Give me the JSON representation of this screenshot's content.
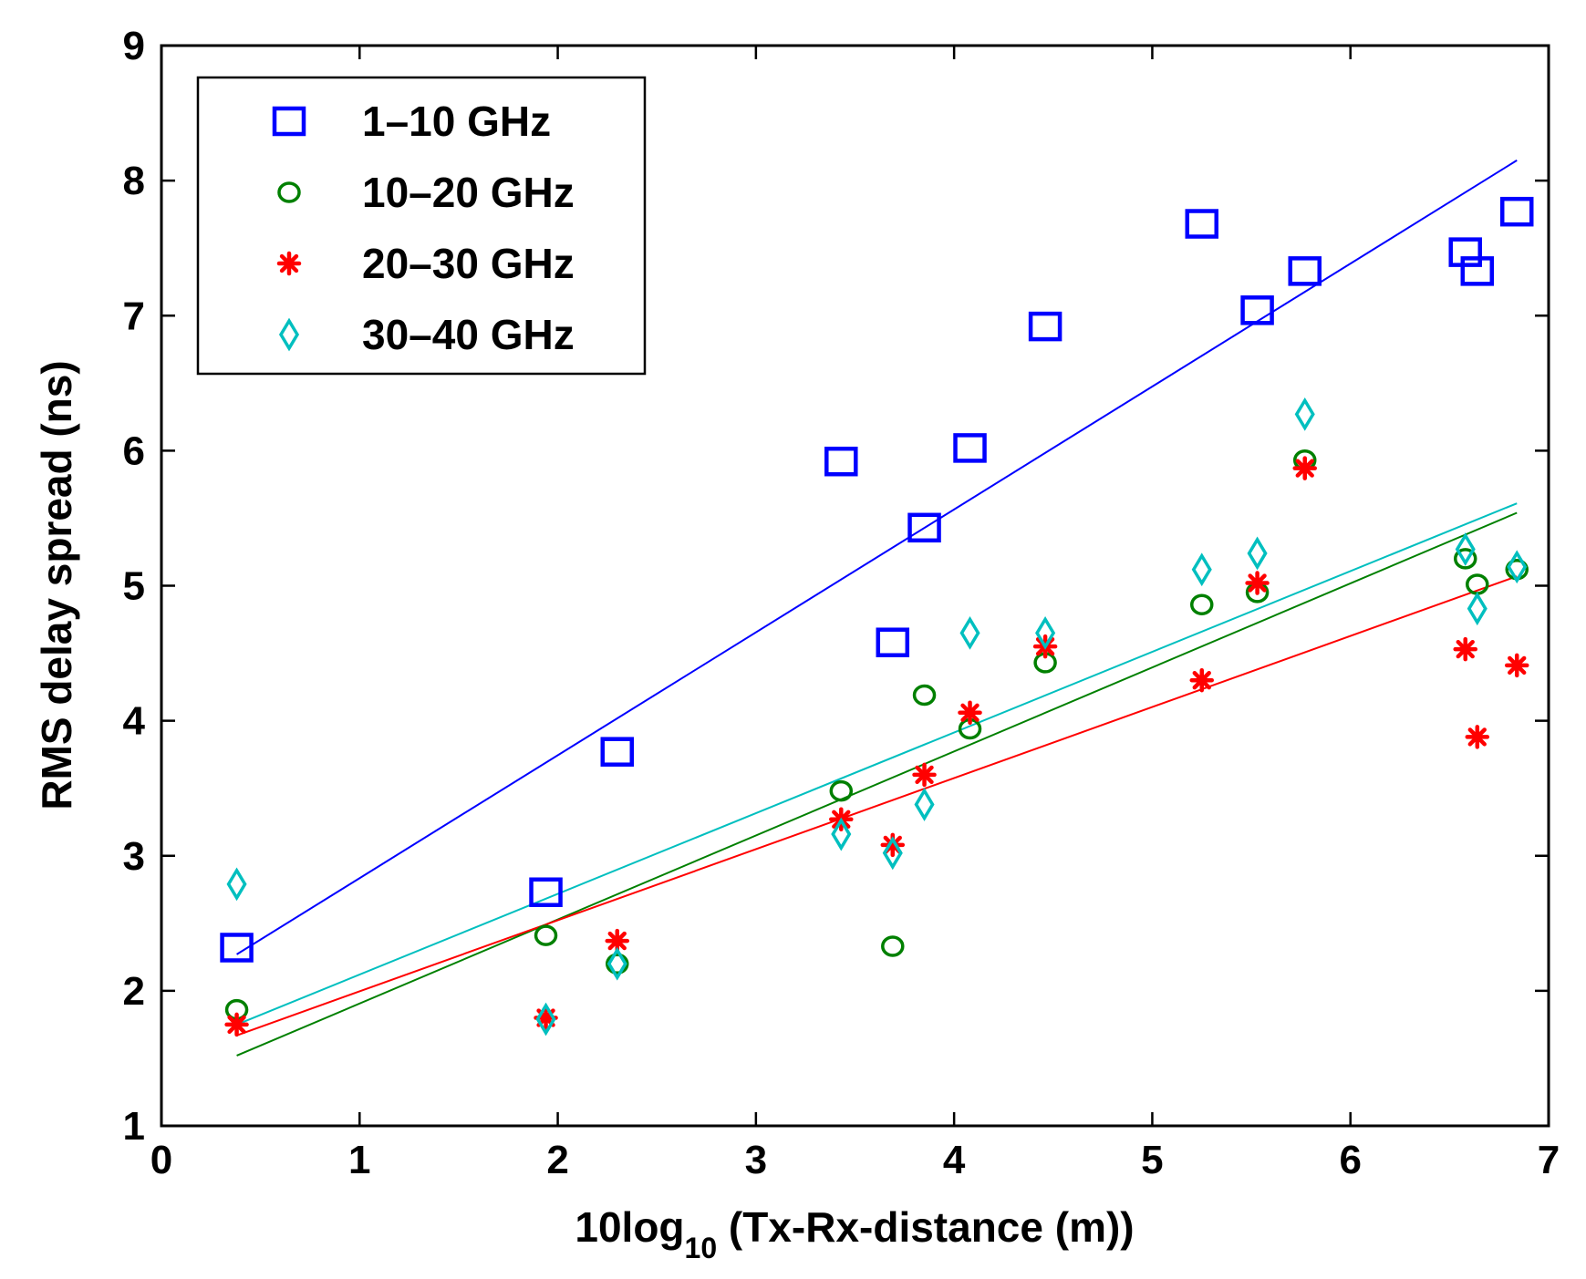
{
  "chart_data": {
    "type": "scatter",
    "title": "",
    "xlabel_main": "10log",
    "xlabel_sub": "10",
    "xlabel_rest": " (Tx-Rx-distance (m))",
    "ylabel": "RMS delay spread (ns)",
    "xlim": [
      0,
      7
    ],
    "ylim": [
      1,
      9
    ],
    "xticks": [
      0,
      1,
      2,
      3,
      4,
      5,
      6,
      7
    ],
    "yticks": [
      1,
      2,
      3,
      4,
      5,
      6,
      7,
      8,
      9
    ],
    "grid": false,
    "legend_position": "top-left",
    "x": [
      0.38,
      1.94,
      2.3,
      3.43,
      3.69,
      3.85,
      4.08,
      4.46,
      5.25,
      5.53,
      5.77,
      6.58,
      6.64,
      6.84
    ],
    "series": [
      {
        "name": "1–10 GHz",
        "marker": "square",
        "color": "#0000ff",
        "values": [
          2.32,
          2.73,
          3.77,
          5.92,
          4.58,
          5.43,
          6.02,
          6.92,
          7.68,
          7.04,
          7.33,
          7.47,
          7.33,
          7.77
        ],
        "fit": [
          [
            0.38,
            2.27
          ],
          [
            6.84,
            8.15
          ]
        ]
      },
      {
        "name": "10–20 GHz",
        "marker": "circle",
        "color": "#008000",
        "values": [
          1.86,
          2.41,
          2.2,
          3.48,
          2.33,
          4.19,
          3.94,
          4.43,
          4.86,
          4.95,
          5.93,
          5.2,
          5.01,
          5.12
        ],
        "fit": [
          [
            0.38,
            1.52
          ],
          [
            6.84,
            5.54
          ]
        ]
      },
      {
        "name": "20–30 GHz",
        "marker": "asterisk",
        "color": "#ff0000",
        "values": [
          1.75,
          1.8,
          2.37,
          3.27,
          3.08,
          3.6,
          4.06,
          4.55,
          4.3,
          5.02,
          5.87,
          4.53,
          3.88,
          4.41
        ],
        "fit": [
          [
            0.38,
            1.67
          ],
          [
            6.84,
            5.07
          ]
        ]
      },
      {
        "name": "30–40 GHz",
        "marker": "diamond",
        "color": "#00bfbf",
        "values": [
          2.79,
          1.79,
          2.2,
          3.16,
          3.02,
          3.38,
          4.65,
          4.65,
          5.12,
          5.24,
          6.27,
          5.27,
          4.83,
          5.14
        ],
        "fit": [
          [
            0.38,
            1.75
          ],
          [
            6.84,
            5.61
          ]
        ]
      }
    ]
  }
}
